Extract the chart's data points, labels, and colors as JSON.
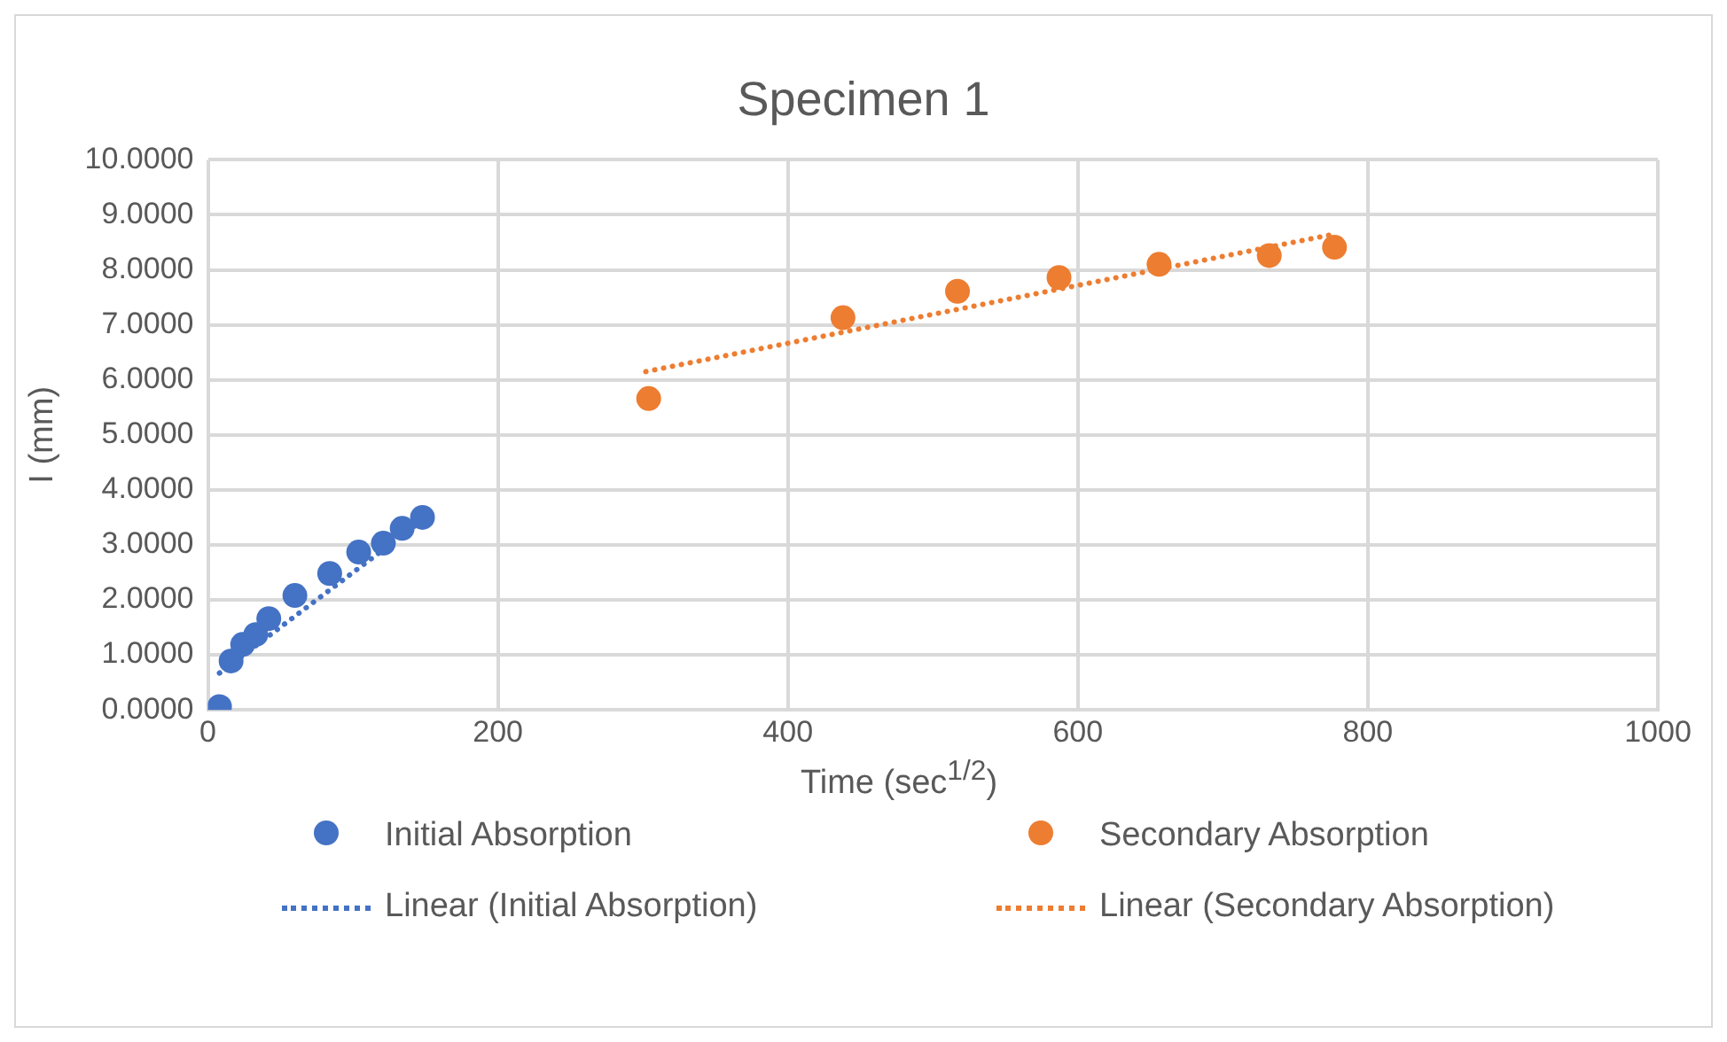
{
  "chart_data": {
    "type": "scatter",
    "title": "Specimen 1",
    "xlabel": "Time (sec$^{1/2}$)",
    "ylabel": "I (mm)",
    "xlim": [
      0,
      1000
    ],
    "xticks": [
      0,
      200,
      400,
      600,
      800,
      1000
    ],
    "ylim": [
      0,
      10
    ],
    "yticks": [
      {
        "value": 0,
        "label": "0.0000"
      },
      {
        "value": 1,
        "label": "1.0000"
      },
      {
        "value": 2,
        "label": "2.0000"
      },
      {
        "value": 3,
        "label": "3.0000"
      },
      {
        "value": 4,
        "label": "4.0000"
      },
      {
        "value": 5,
        "label": "5.0000"
      },
      {
        "value": 6,
        "label": "6.0000"
      },
      {
        "value": 7,
        "label": "7.0000"
      },
      {
        "value": 8,
        "label": "8.0000"
      },
      {
        "value": 9,
        "label": "9.0000"
      },
      {
        "value": 10,
        "label": "10.0000"
      }
    ],
    "grid": true,
    "legend": "bottom",
    "series": [
      {
        "name": "Initial Absorption",
        "marker": "circle",
        "color": "#4472c4",
        "x": [
          8,
          16,
          24,
          33,
          42,
          60,
          84,
          104,
          121,
          134,
          148
        ],
        "values": [
          0.06,
          0.89,
          1.19,
          1.37,
          1.66,
          2.08,
          2.48,
          2.87,
          3.03,
          3.3,
          3.5
        ]
      },
      {
        "name": "Secondary Absorption",
        "marker": "circle",
        "color": "#ed7d31",
        "x": [
          304,
          438,
          517,
          587,
          656,
          732,
          777
        ],
        "values": [
          5.66,
          7.13,
          7.61,
          7.86,
          8.1,
          8.26,
          8.41
        ]
      },
      {
        "name": "Linear (Initial Absorption)",
        "type": "line",
        "marker": "none",
        "line_style": "dotted",
        "color": "#4472c4",
        "x": [
          8,
          148
        ],
        "values": [
          0.67,
          3.45
        ]
      },
      {
        "name": "Linear (Secondary Absorption)",
        "type": "line",
        "marker": "none",
        "line_style": "dotted",
        "color": "#ed7d31",
        "x": [
          302,
          777
        ],
        "values": [
          6.15,
          8.65
        ]
      }
    ]
  }
}
